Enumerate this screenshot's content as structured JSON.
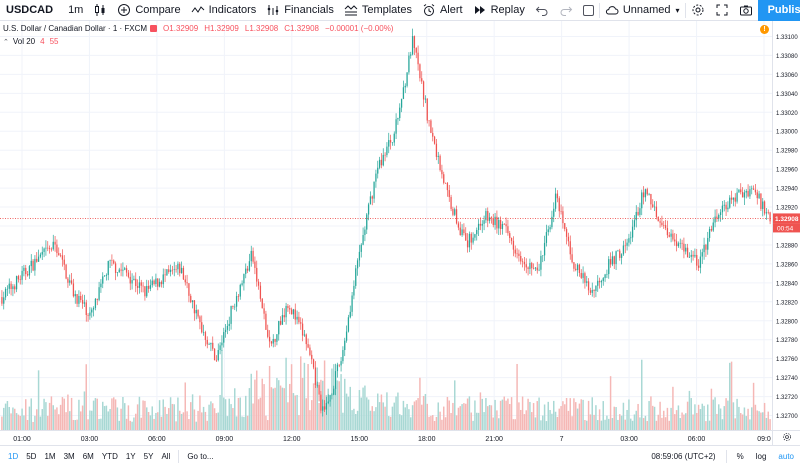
{
  "toolbar": {
    "symbol": "USDCAD",
    "interval": "1m",
    "compare": "Compare",
    "indicators": "Indicators",
    "financials": "Financials",
    "templates": "Templates",
    "alert": "Alert",
    "replay": "Replay",
    "layout_name": "Unnamed",
    "publish": "Publish"
  },
  "legend": {
    "title": "U.S. Dollar / Canadian Dollar · 1 · FXCM",
    "open": "O1.32909",
    "high": "H1.32909",
    "low": "L1.32908",
    "close": "C1.32908",
    "change": "−0.00001 (−0.00%)",
    "vol_label": "Vol 20",
    "vol_value": "4",
    "vol_ma": "55"
  },
  "price_axis": {
    "ticks": [
      "1.33100",
      "1.33080",
      "1.33060",
      "1.33040",
      "1.33020",
      "1.33000",
      "1.32980",
      "1.32960",
      "1.32940",
      "1.32920",
      "1.32900",
      "1.32880",
      "1.32860",
      "1.32840",
      "1.32820",
      "1.32800",
      "1.32780",
      "1.32760",
      "1.32740",
      "1.32720",
      "1.32700"
    ],
    "current_price": "1.32908",
    "countdown": "00:54"
  },
  "time_axis": {
    "ticks": [
      "01:00",
      "03:00",
      "06:00",
      "09:00",
      "12:00",
      "15:00",
      "18:00",
      "21:00",
      "7",
      "03:00",
      "06:00",
      "09:0"
    ]
  },
  "bottom_bar": {
    "ranges": [
      "1D",
      "5D",
      "1M",
      "3M",
      "6M",
      "YTD",
      "1Y",
      "5Y",
      "All"
    ],
    "active_range": "1D",
    "goto": "Go to...",
    "clock": "08:59:06 (UTC+2)",
    "percent": "%",
    "log": "log",
    "auto": "auto"
  },
  "colors": {
    "up": "#26a69a",
    "down": "#ef5350",
    "up_volume": "#a8d8d4",
    "down_volume": "#f5b7b5",
    "price_line": "#ef5350",
    "accent": "#2196f3"
  },
  "chart_data": {
    "type": "candlestick",
    "title": "U.S. Dollar / Canadian Dollar · 1 · FXCM",
    "ylim": [
      1.3269,
      1.3311
    ],
    "x_ticks": [
      "01:00",
      "03:00",
      "06:00",
      "09:00",
      "12:00",
      "15:00",
      "18:00",
      "21:00",
      "7",
      "03:00",
      "06:00",
      "09:0"
    ],
    "close_path": [
      {
        "t": "00:00",
        "price": 1.32825
      },
      {
        "t": "01:00",
        "price": 1.32845
      },
      {
        "t": "02:00",
        "price": 1.32865
      },
      {
        "t": "02:40",
        "price": 1.3288
      },
      {
        "t": "03:30",
        "price": 1.3283
      },
      {
        "t": "04:00",
        "price": 1.32805
      },
      {
        "t": "05:00",
        "price": 1.3286
      },
      {
        "t": "06:00",
        "price": 1.3285
      },
      {
        "t": "07:30",
        "price": 1.3283
      },
      {
        "t": "08:30",
        "price": 1.32845
      },
      {
        "t": "09:00",
        "price": 1.32855
      },
      {
        "t": "10:00",
        "price": 1.328
      },
      {
        "t": "10:30",
        "price": 1.3276
      },
      {
        "t": "11:30",
        "price": 1.3282
      },
      {
        "t": "12:00",
        "price": 1.3287
      },
      {
        "t": "13:00",
        "price": 1.3277
      },
      {
        "t": "13:30",
        "price": 1.3282
      },
      {
        "t": "14:00",
        "price": 1.3278
      },
      {
        "t": "14:30",
        "price": 1.327
      },
      {
        "t": "15:00",
        "price": 1.3276
      },
      {
        "t": "16:00",
        "price": 1.3287
      },
      {
        "t": "16:30",
        "price": 1.3296
      },
      {
        "t": "17:00",
        "price": 1.33
      },
      {
        "t": "17:30",
        "price": 1.33095
      },
      {
        "t": "18:00",
        "price": 1.33
      },
      {
        "t": "18:30",
        "price": 1.3293
      },
      {
        "t": "19:00",
        "price": 1.3288
      },
      {
        "t": "20:00",
        "price": 1.3291
      },
      {
        "t": "21:00",
        "price": 1.329
      },
      {
        "t": "22:00",
        "price": 1.3287
      },
      {
        "t": "23:00",
        "price": 1.3285
      },
      {
        "t": "23:30",
        "price": 1.3293
      },
      {
        "t": "00:30",
        "price": 1.3286
      },
      {
        "t": "01:00",
        "price": 1.3283
      },
      {
        "t": "02:00",
        "price": 1.3286
      },
      {
        "t": "02:30",
        "price": 1.3288
      },
      {
        "t": "03:00",
        "price": 1.3294
      },
      {
        "t": "04:00",
        "price": 1.329
      },
      {
        "t": "05:00",
        "price": 1.3288
      },
      {
        "t": "06:00",
        "price": 1.3286
      },
      {
        "t": "07:00",
        "price": 1.3291
      },
      {
        "t": "08:00",
        "price": 1.3293
      },
      {
        "t": "08:30",
        "price": 1.3294
      },
      {
        "t": "09:00",
        "price": 1.32908
      }
    ]
  }
}
